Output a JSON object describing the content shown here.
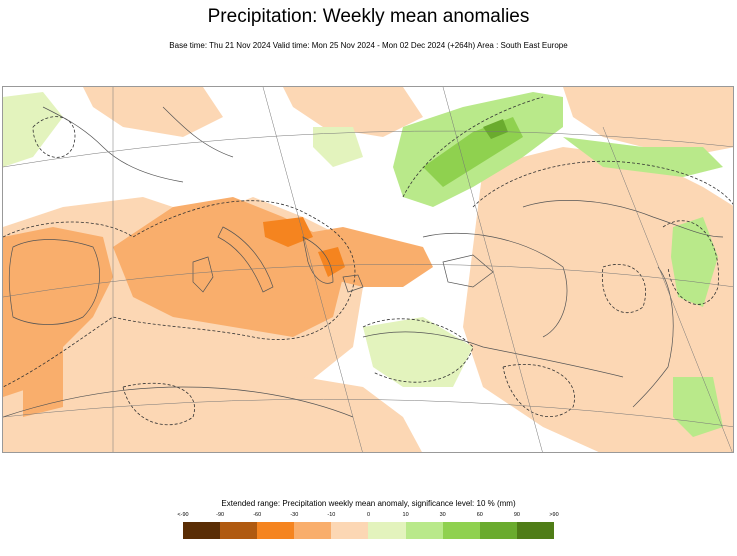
{
  "title": "Precipitation: Weekly mean anomalies",
  "subtitle": "Base time: Thu 21 Nov 2024 Valid time: Mon 25 Nov 2024 - Mon 02 Dec 2024 (+264h) Area : South East Europe",
  "legend": {
    "title": "Extended range: Precipitation weekly mean anomaly, significance level: 10 % (mm)",
    "labels": [
      "<-90",
      "-90",
      "-60",
      "-30",
      "-10",
      "0",
      "10",
      "30",
      "60",
      "90",
      ">90"
    ],
    "colors": [
      "#5a2d05",
      "#b05a10",
      "#f5841f",
      "#f9ae6c",
      "#fcd7b4",
      "#e3f3bd",
      "#b9e98a",
      "#8fd14f",
      "#6aab2e",
      "#4f7d17"
    ]
  }
}
